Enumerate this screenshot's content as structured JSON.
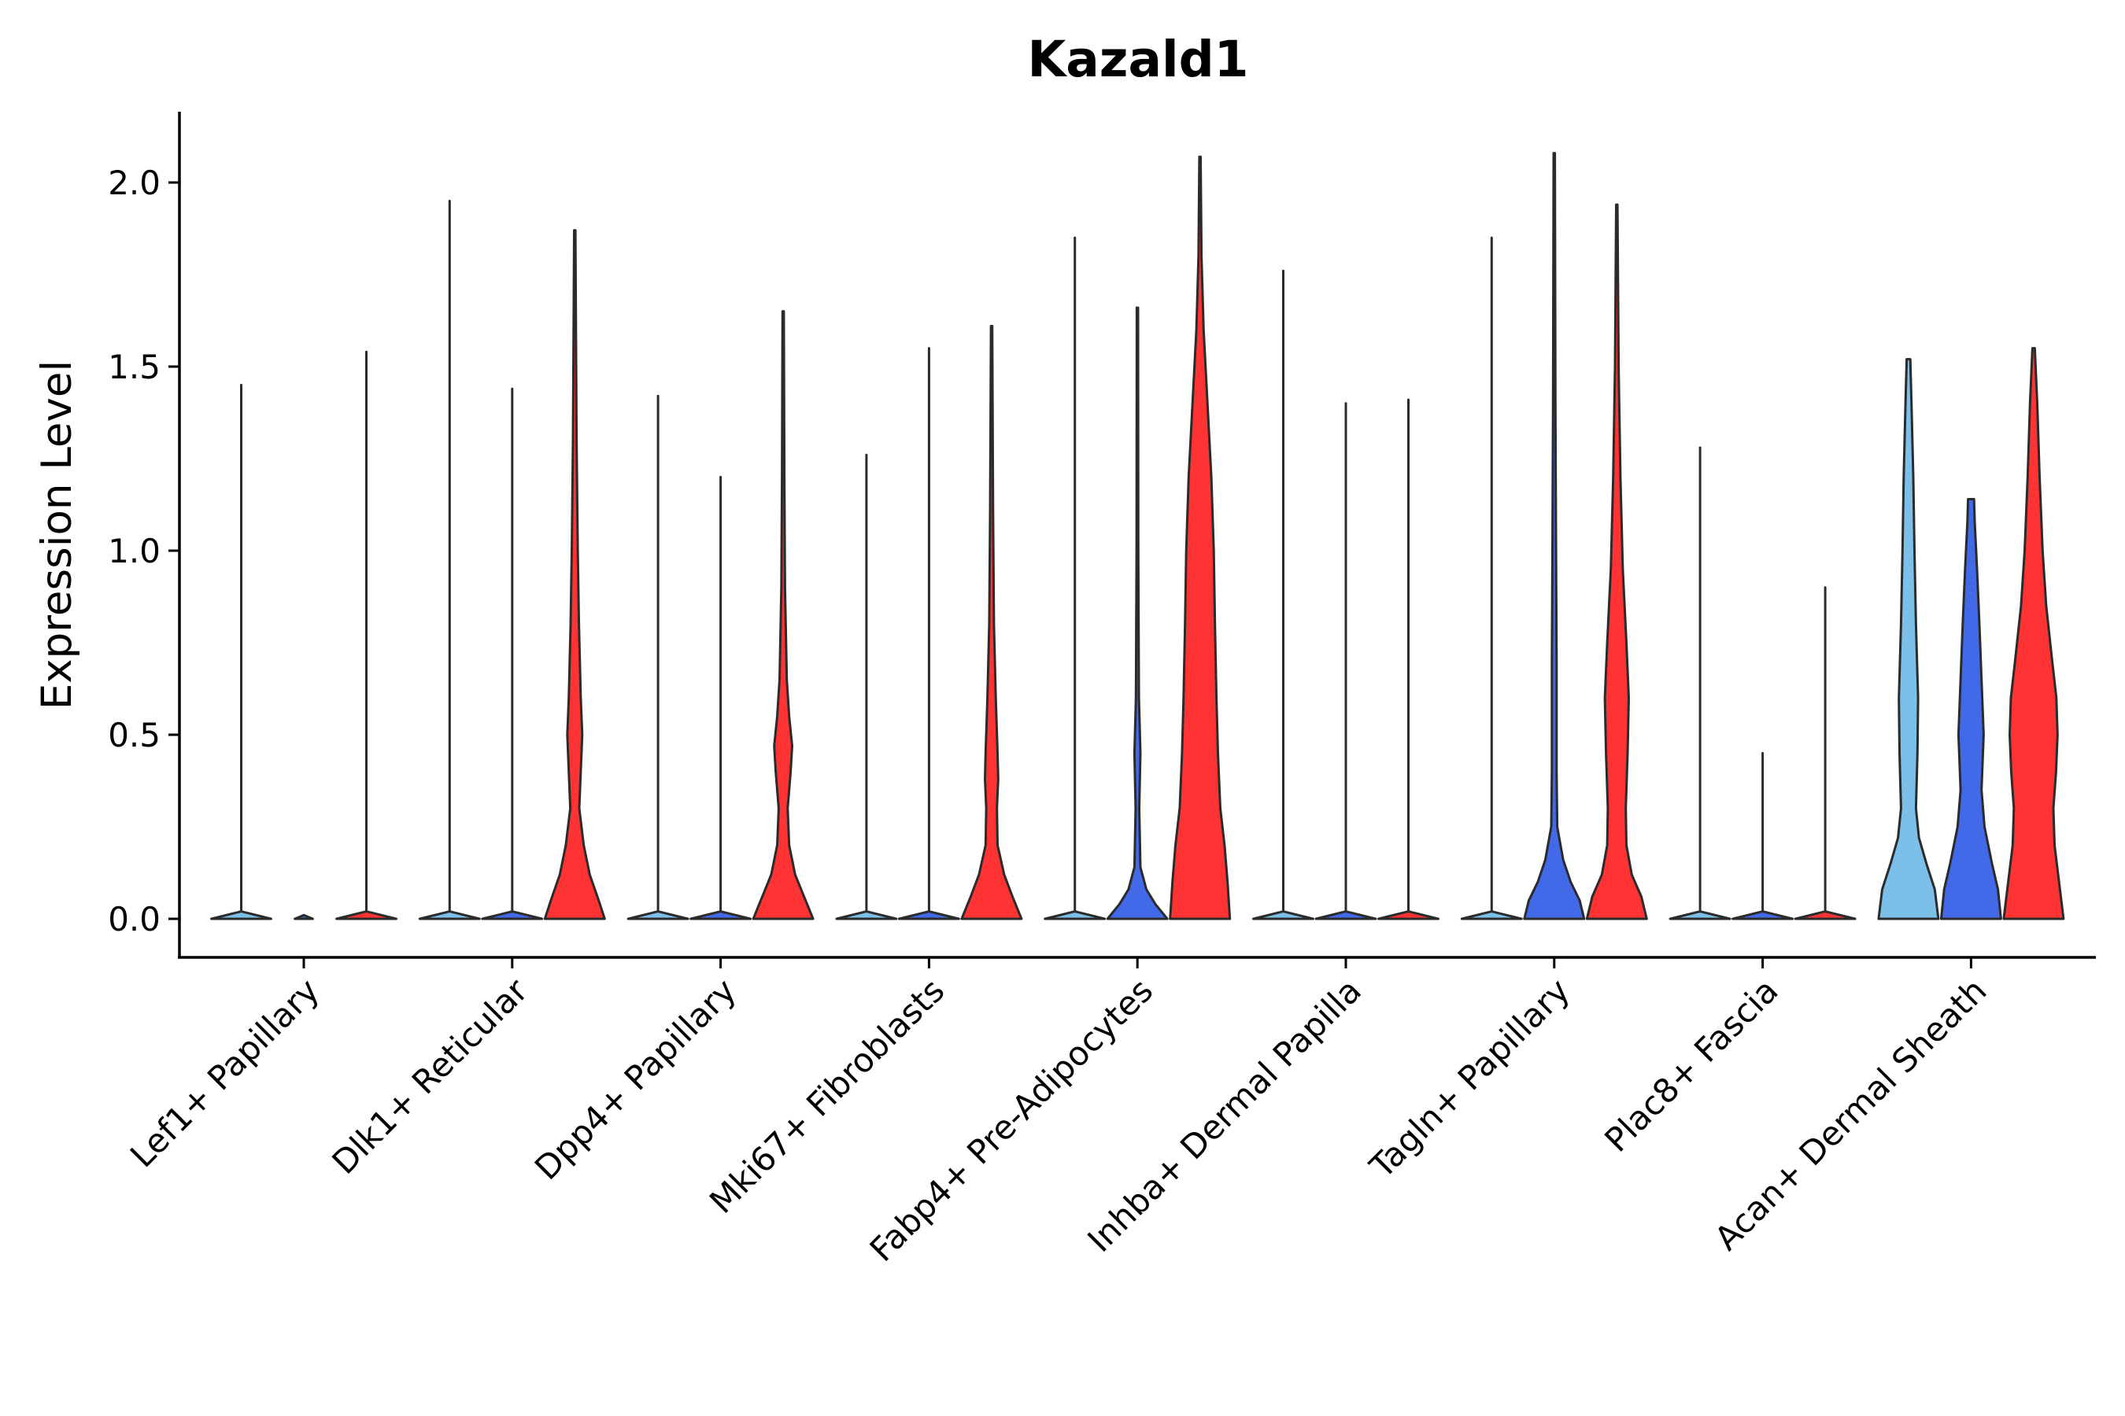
{
  "chart_data": {
    "type": "violin",
    "title": "Kazald1",
    "xlabel": "",
    "ylabel": "Expression Level",
    "ylim": [
      -0.1,
      2.2
    ],
    "yticks": [
      0.0,
      0.5,
      1.0,
      1.5,
      2.0
    ],
    "ytick_labels": [
      "0.0",
      "0.5",
      "1.0",
      "1.5",
      "2.0"
    ],
    "series_colors": [
      "#7cbfe9",
      "#4169e8",
      "#ff3333"
    ],
    "categories": [
      "Lef1+ Papillary",
      "Dlk1+ Reticular",
      "Dpp4+ Papillary",
      "Mki67+ Fibroblasts",
      "Fabp4+ Pre-Adipocytes",
      "Inhba+ Dermal Papilla",
      "Tagln+ Papillary",
      "Plac8+ Fascia",
      "Acan+ Dermal Sheath"
    ],
    "violins": [
      [
        {
          "max": 1.45,
          "profile": [
            [
              0,
              1
            ],
            [
              0.02,
              0
            ]
          ]
        },
        {
          "max": 0.0,
          "profile": [
            [
              0,
              0.3
            ],
            [
              0.01,
              0
            ]
          ]
        },
        {
          "max": 1.54,
          "profile": [
            [
              0,
              1
            ],
            [
              0.02,
              0
            ]
          ]
        }
      ],
      [
        {
          "max": 1.95,
          "profile": [
            [
              0,
              1
            ],
            [
              0.02,
              0
            ]
          ]
        },
        {
          "max": 1.44,
          "profile": [
            [
              0,
              1
            ],
            [
              0.02,
              0
            ]
          ]
        },
        {
          "max": 1.87,
          "profile": [
            [
              0,
              1
            ],
            [
              0.05,
              0.8
            ],
            [
              0.12,
              0.5
            ],
            [
              0.2,
              0.3
            ],
            [
              0.3,
              0.15
            ],
            [
              0.4,
              0.2
            ],
            [
              0.5,
              0.25
            ],
            [
              0.6,
              0.2
            ],
            [
              0.8,
              0.14
            ],
            [
              1.0,
              0.1
            ],
            [
              1.3,
              0.06
            ],
            [
              1.6,
              0.04
            ],
            [
              1.87,
              0.02
            ]
          ]
        }
      ],
      [
        {
          "max": 1.42,
          "profile": [
            [
              0,
              1
            ],
            [
              0.02,
              0
            ]
          ]
        },
        {
          "max": 1.2,
          "profile": [
            [
              0,
              1
            ],
            [
              0.02,
              0
            ]
          ]
        },
        {
          "max": 1.65,
          "profile": [
            [
              0,
              1
            ],
            [
              0.06,
              0.7
            ],
            [
              0.12,
              0.4
            ],
            [
              0.2,
              0.2
            ],
            [
              0.3,
              0.15
            ],
            [
              0.4,
              0.25
            ],
            [
              0.47,
              0.3
            ],
            [
              0.55,
              0.2
            ],
            [
              0.65,
              0.12
            ],
            [
              0.9,
              0.06
            ],
            [
              1.2,
              0.04
            ],
            [
              1.65,
              0.02
            ]
          ]
        }
      ],
      [
        {
          "max": 1.26,
          "profile": [
            [
              0,
              1
            ],
            [
              0.02,
              0
            ]
          ]
        },
        {
          "max": 1.55,
          "profile": [
            [
              0,
              1
            ],
            [
              0.02,
              0
            ]
          ]
        },
        {
          "max": 1.61,
          "profile": [
            [
              0,
              1
            ],
            [
              0.06,
              0.7
            ],
            [
              0.12,
              0.42
            ],
            [
              0.2,
              0.2
            ],
            [
              0.3,
              0.18
            ],
            [
              0.38,
              0.22
            ],
            [
              0.45,
              0.2
            ],
            [
              0.6,
              0.14
            ],
            [
              0.8,
              0.08
            ],
            [
              1.1,
              0.05
            ],
            [
              1.61,
              0.02
            ]
          ]
        }
      ],
      [
        {
          "max": 1.85,
          "profile": [
            [
              0,
              1
            ],
            [
              0.02,
              0
            ]
          ]
        },
        {
          "max": 1.66,
          "profile": [
            [
              0,
              1
            ],
            [
              0.04,
              0.6
            ],
            [
              0.08,
              0.3
            ],
            [
              0.14,
              0.1
            ],
            [
              0.3,
              0.06
            ],
            [
              0.45,
              0.1
            ],
            [
              0.6,
              0.05
            ],
            [
              1.0,
              0.03
            ],
            [
              1.66,
              0.02
            ]
          ]
        },
        {
          "max": 2.07,
          "profile": [
            [
              0,
              1
            ],
            [
              0.1,
              0.92
            ],
            [
              0.2,
              0.82
            ],
            [
              0.3,
              0.68
            ],
            [
              0.45,
              0.6
            ],
            [
              0.6,
              0.55
            ],
            [
              0.8,
              0.5
            ],
            [
              1.0,
              0.46
            ],
            [
              1.2,
              0.38
            ],
            [
              1.4,
              0.25
            ],
            [
              1.6,
              0.12
            ],
            [
              1.8,
              0.05
            ],
            [
              2.07,
              0.02
            ]
          ]
        }
      ],
      [
        {
          "max": 1.76,
          "profile": [
            [
              0,
              1
            ],
            [
              0.02,
              0
            ]
          ]
        },
        {
          "max": 1.4,
          "profile": [
            [
              0,
              1
            ],
            [
              0.02,
              0
            ]
          ]
        },
        {
          "max": 1.41,
          "profile": [
            [
              0,
              1
            ],
            [
              0.02,
              0
            ]
          ]
        }
      ],
      [
        {
          "max": 1.85,
          "profile": [
            [
              0,
              1
            ],
            [
              0.02,
              0
            ]
          ]
        },
        {
          "max": 2.08,
          "profile": [
            [
              0,
              1
            ],
            [
              0.05,
              0.85
            ],
            [
              0.1,
              0.55
            ],
            [
              0.16,
              0.3
            ],
            [
              0.25,
              0.1
            ],
            [
              0.4,
              0.08
            ],
            [
              0.7,
              0.08
            ],
            [
              1.0,
              0.06
            ],
            [
              1.4,
              0.04
            ],
            [
              2.08,
              0.02
            ]
          ]
        },
        {
          "max": 1.94,
          "profile": [
            [
              0,
              1
            ],
            [
              0.06,
              0.82
            ],
            [
              0.12,
              0.5
            ],
            [
              0.2,
              0.32
            ],
            [
              0.3,
              0.3
            ],
            [
              0.45,
              0.36
            ],
            [
              0.6,
              0.4
            ],
            [
              0.75,
              0.32
            ],
            [
              0.95,
              0.2
            ],
            [
              1.2,
              0.12
            ],
            [
              1.5,
              0.06
            ],
            [
              1.94,
              0.02
            ]
          ]
        }
      ],
      [
        {
          "max": 1.28,
          "profile": [
            [
              0,
              1
            ],
            [
              0.02,
              0
            ]
          ]
        },
        {
          "max": 0.45,
          "profile": [
            [
              0,
              1
            ],
            [
              0.02,
              0
            ]
          ]
        },
        {
          "max": 0.9,
          "profile": [
            [
              0,
              1
            ],
            [
              0.02,
              0
            ]
          ]
        }
      ],
      [
        {
          "max": 1.52,
          "profile": [
            [
              0,
              1
            ],
            [
              0.08,
              0.88
            ],
            [
              0.15,
              0.6
            ],
            [
              0.22,
              0.35
            ],
            [
              0.3,
              0.25
            ],
            [
              0.45,
              0.3
            ],
            [
              0.6,
              0.32
            ],
            [
              0.8,
              0.25
            ],
            [
              1.0,
              0.2
            ],
            [
              1.2,
              0.16
            ],
            [
              1.4,
              0.1
            ],
            [
              1.52,
              0.06
            ]
          ]
        },
        {
          "max": 1.14,
          "profile": [
            [
              0,
              1
            ],
            [
              0.08,
              0.9
            ],
            [
              0.15,
              0.7
            ],
            [
              0.25,
              0.45
            ],
            [
              0.35,
              0.35
            ],
            [
              0.5,
              0.42
            ],
            [
              0.65,
              0.35
            ],
            [
              0.8,
              0.28
            ],
            [
              0.95,
              0.2
            ],
            [
              1.08,
              0.12
            ],
            [
              1.14,
              0.1
            ]
          ]
        },
        {
          "max": 1.55,
          "profile": [
            [
              0,
              1
            ],
            [
              0.1,
              0.85
            ],
            [
              0.2,
              0.7
            ],
            [
              0.3,
              0.66
            ],
            [
              0.4,
              0.75
            ],
            [
              0.5,
              0.8
            ],
            [
              0.6,
              0.76
            ],
            [
              0.7,
              0.62
            ],
            [
              0.85,
              0.42
            ],
            [
              1.0,
              0.3
            ],
            [
              1.2,
              0.2
            ],
            [
              1.4,
              0.12
            ],
            [
              1.55,
              0.04
            ]
          ]
        }
      ]
    ]
  }
}
